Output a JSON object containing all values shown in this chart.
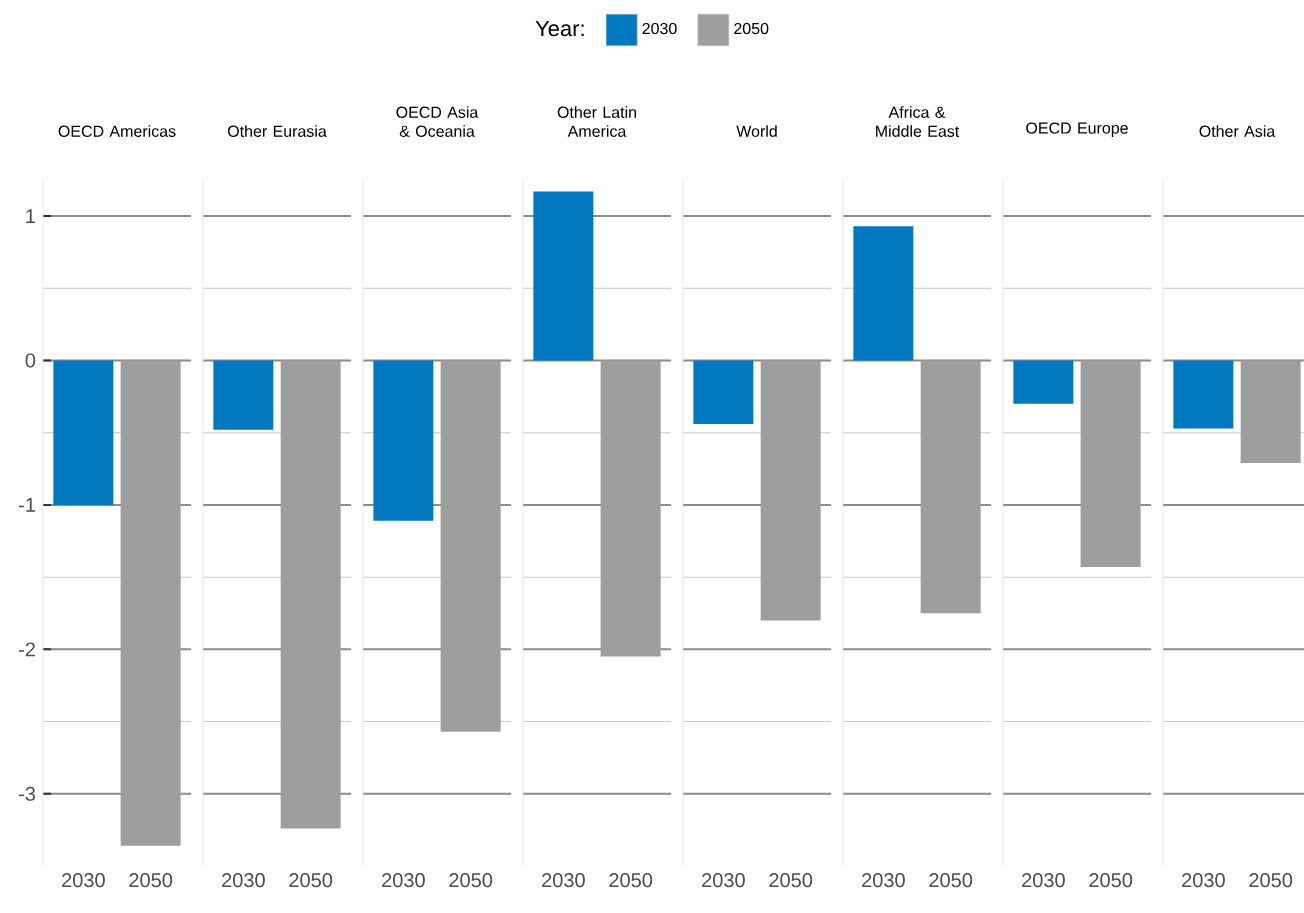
{
  "chart_data": [
    {
      "type": "bar",
      "title": "OECD Americas",
      "categories": [
        "2030",
        "2050"
      ],
      "legend": "top",
      "legend_title": "Year:",
      "grid": "y",
      "ylim": [
        -3.5,
        1.25
      ],
      "yticks": [
        -3,
        -2,
        -1,
        0,
        1
      ],
      "series": [
        {
          "name": "2030",
          "color": "#0079c1",
          "values": [
            -1.0,
            null
          ]
        },
        {
          "name": "2050",
          "color": "#9e9e9e",
          "values": [
            null,
            -3.36
          ]
        }
      ]
    },
    {
      "type": "bar",
      "title": "Other Eurasia",
      "categories": [
        "2030",
        "2050"
      ],
      "grid": "y",
      "ylim": [
        -3.5,
        1.25
      ],
      "yticks": [
        -3,
        -2,
        -1,
        0,
        1
      ],
      "tick_labels": "x",
      "series": [
        {
          "color": "#0079c1",
          "values": [
            -0.48,
            null
          ]
        },
        {
          "color": "#9e9e9e",
          "values": [
            null,
            -3.24
          ]
        }
      ]
    },
    {
      "type": "bar",
      "title": "OECD Asia & Oceania",
      "categories": [
        "2030",
        "2050"
      ],
      "grid": "y",
      "ylim": [
        -3.5,
        1.25
      ],
      "yticks": [
        -3,
        -2,
        -1,
        0,
        1
      ],
      "tick_labels": "x",
      "series": [
        {
          "color": "#0079c1",
          "values": [
            -1.11,
            null
          ]
        },
        {
          "color": "#9e9e9e",
          "values": [
            null,
            -2.57
          ]
        }
      ]
    },
    {
      "type": "bar",
      "title": "Other Latin America",
      "categories": [
        "2030",
        "2050"
      ],
      "grid": "y",
      "ylim": [
        -3.5,
        1.25
      ],
      "yticks": [
        -3,
        -2,
        -1,
        0,
        1
      ],
      "tick_labels": "x",
      "series": [
        {
          "color": "#0079c1",
          "values": [
            1.17,
            null
          ]
        },
        {
          "color": "#9e9e9e",
          "values": [
            null,
            -2.05
          ]
        }
      ]
    },
    {
      "type": "bar",
      "title": "World",
      "categories": [
        "2030",
        "2050"
      ],
      "grid": "y",
      "ylim": [
        -3.5,
        1.25
      ],
      "yticks": [
        -3,
        -2,
        -1,
        0,
        1
      ],
      "tick_labels": "x",
      "series": [
        {
          "color": "#0079c1",
          "values": [
            -0.44,
            null
          ]
        },
        {
          "color": "#9e9e9e",
          "values": [
            null,
            -1.8
          ]
        }
      ]
    },
    {
      "type": "bar",
      "title": "Africa & Middle East",
      "categories": [
        "2030",
        "2050"
      ],
      "grid": "y",
      "ylim": [
        -3.5,
        1.25
      ],
      "yticks": [
        -3,
        -2,
        -1,
        0,
        1
      ],
      "tick_labels": "x",
      "series": [
        {
          "color": "#0079c1",
          "values": [
            0.93,
            null
          ]
        },
        {
          "color": "#9e9e9e",
          "values": [
            null,
            -1.75
          ]
        }
      ]
    },
    {
      "type": "bar",
      "title": "OECD Europe",
      "categories": [
        "2030",
        "2050"
      ],
      "grid": "y",
      "ylim": [
        -3.5,
        1.25
      ],
      "yticks": [
        -3,
        -2,
        -1,
        0,
        1
      ],
      "tick_labels": "x",
      "series": [
        {
          "color": "#0079c1",
          "values": [
            -0.3,
            null
          ]
        },
        {
          "color": "#9e9e9e",
          "values": [
            null,
            -1.43
          ]
        }
      ]
    },
    {
      "type": "bar",
      "title": "Other Asia",
      "categories": [
        "2030",
        "2050"
      ],
      "grid": "y",
      "ylim": [
        -3.5,
        1.25
      ],
      "yticks": [
        -3,
        -2,
        -1,
        0,
        1
      ],
      "tick_labels": "x",
      "series": [
        {
          "color": "#0079c1",
          "values": [
            -0.47,
            null
          ]
        },
        {
          "color": "#9e9e9e",
          "values": [
            null,
            -0.71
          ]
        }
      ]
    }
  ]
}
